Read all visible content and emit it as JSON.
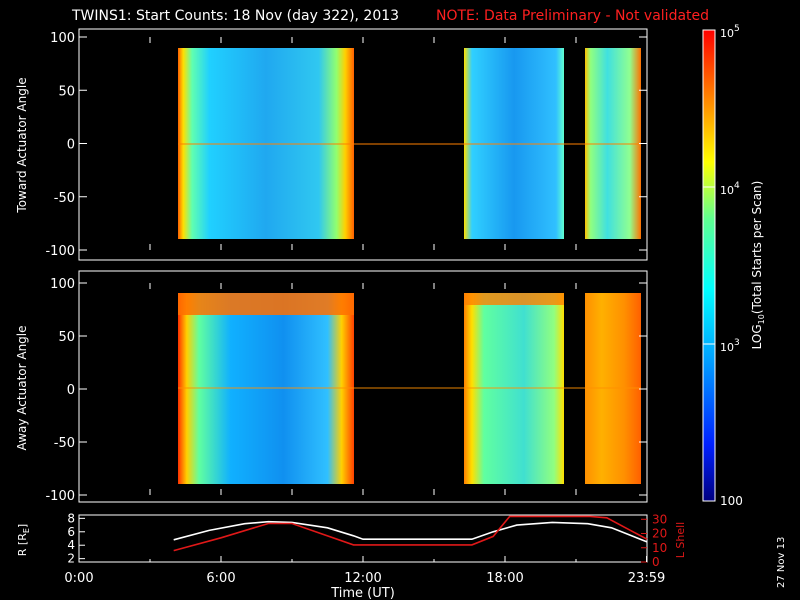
{
  "title": "TWINS1: Start Counts: 18 Nov (day 322), 2013",
  "note": "NOTE: Data Preliminary - Not validated",
  "stamp": "27 Nov 13",
  "colors": {
    "background": "#000000",
    "axes": "#ffffff",
    "note": "#ff2020",
    "r_line": "#ffffff",
    "lshell_line": "#e01818"
  },
  "chart_data": [
    {
      "type": "heatmap",
      "ylabel": "Toward Actuator Angle",
      "xlim": [
        0,
        24
      ],
      "ylim": [
        -100,
        100
      ],
      "yticks": [
        "100",
        "50",
        "0",
        "-50",
        "-100"
      ],
      "data_blocks_hours": [
        [
          4.0,
          11.6
        ],
        [
          16.6,
          20.6
        ],
        [
          21.6,
          24.0
        ]
      ],
      "actuator_range_deg": [
        -88,
        90
      ],
      "colormap": "rainbow (log scale)",
      "typical_level": "~10^3 in middle, ~10^4-10^5 at block edges"
    },
    {
      "type": "heatmap",
      "ylabel": "Away Actuator Angle",
      "xlim": [
        0,
        24
      ],
      "ylim": [
        -100,
        100
      ],
      "yticks": [
        "100",
        "50",
        "0",
        "-50",
        "-100"
      ],
      "data_blocks_hours": [
        [
          4.0,
          11.6
        ],
        [
          16.6,
          20.6
        ],
        [
          21.6,
          24.0
        ]
      ],
      "actuator_range_deg": [
        -88,
        90
      ],
      "colormap": "rainbow (log scale)"
    },
    {
      "type": "line",
      "ylabel_left": "R [R",
      "ylabel_left_sub": "E",
      "ylabel_left_end": "]",
      "ylabel_right": "L Shell",
      "xlabel": "Time (UT)",
      "xlim": [
        0,
        24
      ],
      "yticks_left": [
        "8",
        "6",
        "4",
        "2"
      ],
      "yticks_right": [
        "30",
        "20",
        "10",
        "0"
      ],
      "xticks": [
        "0:00",
        "6:00",
        "12:00",
        "18:00",
        "23:59"
      ],
      "series": [
        {
          "name": "R [RE]",
          "x": [
            4.0,
            5.5,
            7.0,
            8.0,
            9.0,
            10.5,
            11.6,
            12.0,
            16.6,
            17.5,
            18.5,
            20.0,
            21.5,
            22.5,
            24.0
          ],
          "y": [
            4.8,
            6.2,
            7.2,
            7.5,
            7.4,
            6.6,
            5.4,
            4.9,
            4.9,
            6.0,
            7.0,
            7.4,
            7.2,
            6.6,
            4.5
          ]
        },
        {
          "name": "L Shell",
          "x": [
            4.0,
            6.0,
            8.0,
            9.0,
            11.6,
            16.6,
            17.5,
            18.2,
            20.6,
            21.6,
            22.3,
            24.0
          ],
          "y": [
            8.0,
            17.0,
            27.0,
            27.0,
            12.0,
            12.0,
            18.0,
            32.0,
            32.0,
            32.0,
            31.0,
            16.0
          ]
        }
      ]
    }
  ],
  "colorbar": {
    "label": "LOG",
    "label_sub": "10",
    "label_end": "(Total Starts per Scan)",
    "ticks": [
      {
        "base": "10",
        "exp": "5"
      },
      {
        "base": "10",
        "exp": "4"
      },
      {
        "base": "10",
        "exp": "3"
      }
    ],
    "bottom_tick": "100",
    "range_log": [
      2,
      5
    ]
  }
}
